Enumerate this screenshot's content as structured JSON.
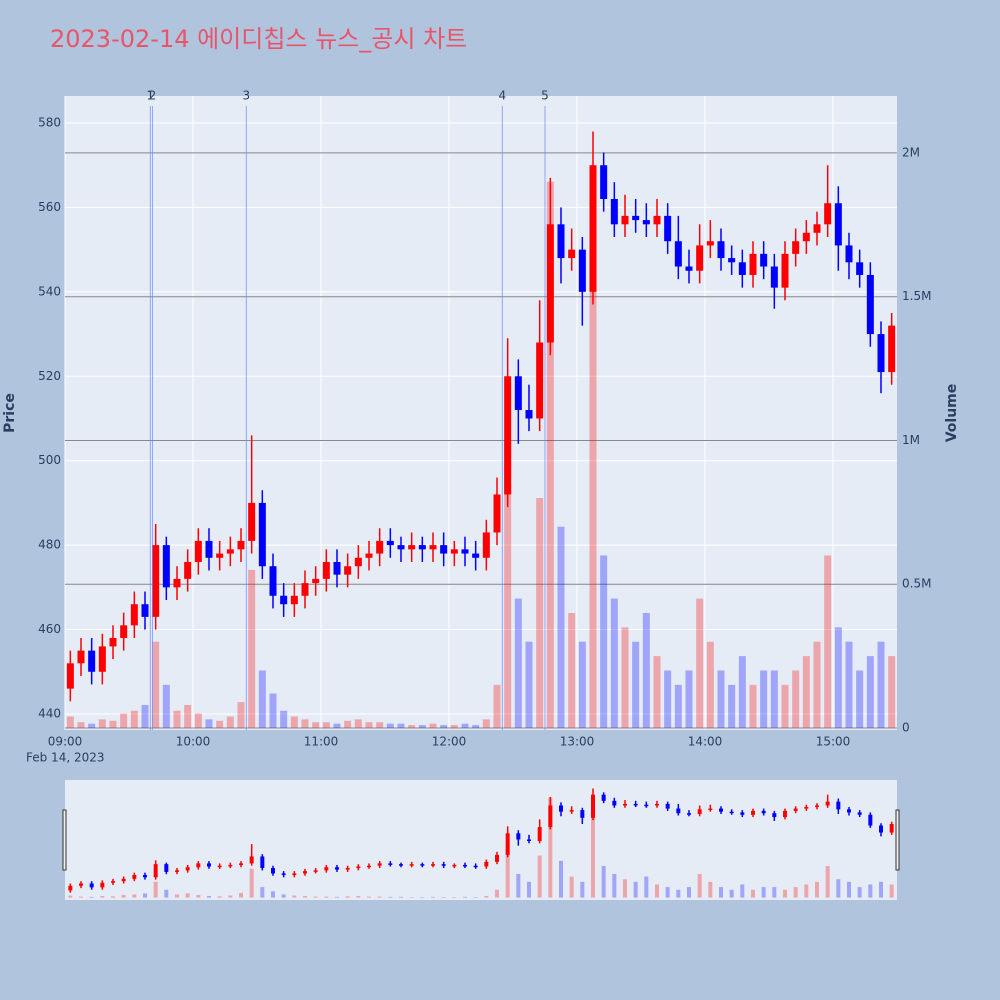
{
  "chart_data": {
    "type": "candlestick",
    "title": "2023-02-14 에이디칩스 뉴스_공시 차트",
    "y_title": "Price",
    "y2_title": "Volume",
    "x_date_label": "Feb 14, 2023",
    "increasing_color": "#ff0000",
    "decreasing_color": "#0000ff",
    "grid": true,
    "range_slider": true,
    "xlim": [
      "09:00",
      "15:30"
    ],
    "xticks": [
      "09:00",
      "10:00",
      "11:00",
      "12:00",
      "13:00",
      "14:00",
      "15:00"
    ],
    "ylim": [
      436.2,
      586.4
    ],
    "yticks": [
      440,
      460,
      480,
      500,
      520,
      540,
      560,
      580
    ],
    "y2lim": [
      -7000,
      2198000
    ],
    "y2ticks": [
      0,
      {
        "value": 500000,
        "label": "0.5M"
      },
      {
        "value": 1000000,
        "label": "1M"
      },
      {
        "value": 1500000,
        "label": "1.5M"
      },
      {
        "value": 2000000,
        "label": "2M"
      }
    ],
    "events": [
      {
        "time": "09:40",
        "label": "1"
      },
      {
        "time": "09:41",
        "label": "2"
      },
      {
        "time": "10:25",
        "label": "3"
      },
      {
        "time": "12:25",
        "label": "4"
      },
      {
        "time": "12:45",
        "label": "5"
      }
    ],
    "x": [
      "09:00",
      "09:05",
      "09:10",
      "09:15",
      "09:20",
      "09:25",
      "09:30",
      "09:35",
      "09:40",
      "09:45",
      "09:50",
      "09:55",
      "10:00",
      "10:05",
      "10:10",
      "10:15",
      "10:20",
      "10:25",
      "10:30",
      "10:35",
      "10:40",
      "10:45",
      "10:50",
      "10:55",
      "11:00",
      "11:05",
      "11:10",
      "11:15",
      "11:20",
      "11:25",
      "11:30",
      "11:35",
      "11:40",
      "11:45",
      "11:50",
      "11:55",
      "12:00",
      "12:05",
      "12:10",
      "12:15",
      "12:20",
      "12:25",
      "12:30",
      "12:35",
      "12:40",
      "12:45",
      "12:50",
      "12:55",
      "13:00",
      "13:05",
      "13:10",
      "13:15",
      "13:20",
      "13:25",
      "13:30",
      "13:35",
      "13:40",
      "13:45",
      "13:50",
      "13:55",
      "14:00",
      "14:05",
      "14:10",
      "14:15",
      "14:20",
      "14:25",
      "14:30",
      "14:35",
      "14:40",
      "14:45",
      "14:50",
      "14:55",
      "15:00",
      "15:05",
      "15:10",
      "15:15",
      "15:20",
      "15:25"
    ],
    "open": [
      446,
      452,
      455,
      450,
      456,
      458,
      461,
      466,
      463,
      480,
      470,
      472,
      476,
      481,
      477,
      478,
      479,
      481,
      490,
      475,
      468,
      466,
      468,
      471,
      472,
      476,
      473,
      475,
      477,
      478,
      481,
      480,
      479,
      480,
      479,
      480,
      478,
      479,
      478,
      477,
      483,
      492,
      520,
      512,
      510,
      528,
      556,
      548,
      550,
      540,
      570,
      562,
      556,
      558,
      557,
      556,
      558,
      552,
      546,
      545,
      551,
      552,
      548,
      547,
      544,
      549,
      546,
      541,
      549,
      552,
      554,
      556,
      561,
      551,
      547,
      544,
      530,
      521
    ],
    "high": [
      455,
      458,
      458,
      459,
      461,
      464,
      469,
      469,
      485,
      482,
      475,
      479,
      484,
      484,
      481,
      482,
      484,
      506,
      493,
      478,
      471,
      471,
      474,
      475,
      479,
      479,
      478,
      480,
      481,
      484,
      484,
      482,
      483,
      482,
      483,
      483,
      481,
      482,
      481,
      486,
      496,
      529,
      524,
      518,
      538,
      567,
      560,
      555,
      553,
      578,
      573,
      566,
      563,
      562,
      561,
      562,
      561,
      558,
      550,
      556,
      557,
      555,
      551,
      550,
      552,
      552,
      549,
      552,
      555,
      557,
      559,
      570,
      565,
      554,
      550,
      547,
      533,
      535
    ],
    "low": [
      443,
      449,
      447,
      447,
      453,
      455,
      458,
      460,
      460,
      467,
      467,
      469,
      473,
      474,
      474,
      475,
      476,
      478,
      472,
      465,
      463,
      463,
      465,
      468,
      469,
      470,
      470,
      472,
      474,
      475,
      477,
      476,
      476,
      476,
      476,
      475,
      475,
      475,
      474,
      474,
      480,
      489,
      504,
      507,
      507,
      525,
      542,
      545,
      532,
      537,
      559,
      553,
      553,
      554,
      553,
      553,
      549,
      543,
      542,
      542,
      548,
      545,
      544,
      541,
      541,
      543,
      536,
      538,
      546,
      549,
      551,
      553,
      545,
      543,
      541,
      527,
      516,
      518
    ],
    "close": [
      452,
      455,
      450,
      456,
      458,
      461,
      466,
      463,
      480,
      470,
      472,
      476,
      481,
      477,
      478,
      479,
      481,
      490,
      475,
      468,
      466,
      468,
      471,
      472,
      476,
      473,
      475,
      477,
      478,
      481,
      480,
      479,
      480,
      479,
      480,
      478,
      479,
      478,
      477,
      483,
      492,
      520,
      512,
      510,
      528,
      556,
      548,
      550,
      540,
      570,
      562,
      556,
      558,
      557,
      556,
      558,
      552,
      546,
      545,
      551,
      552,
      548,
      547,
      544,
      549,
      546,
      541,
      549,
      552,
      554,
      556,
      561,
      551,
      547,
      544,
      530,
      521,
      532
    ],
    "volume": [
      40000,
      20000,
      15000,
      30000,
      25000,
      50000,
      60000,
      80000,
      300000,
      150000,
      60000,
      80000,
      50000,
      30000,
      25000,
      40000,
      90000,
      550000,
      200000,
      120000,
      60000,
      40000,
      30000,
      20000,
      20000,
      15000,
      25000,
      30000,
      20000,
      20000,
      15000,
      15000,
      10000,
      10000,
      15000,
      10000,
      10000,
      15000,
      10000,
      30000,
      150000,
      1000000,
      450000,
      300000,
      800000,
      1900000,
      700000,
      400000,
      300000,
      1900000,
      600000,
      450000,
      350000,
      300000,
      400000,
      250000,
      200000,
      150000,
      200000,
      450000,
      300000,
      200000,
      150000,
      250000,
      150000,
      200000,
      200000,
      150000,
      200000,
      250000,
      300000,
      600000,
      350000,
      300000,
      200000,
      250000,
      300000,
      250000
    ]
  }
}
